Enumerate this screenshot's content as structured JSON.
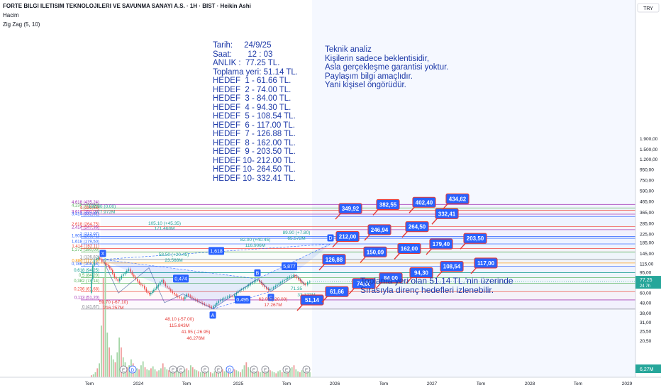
{
  "header": {
    "title": "FORTE BILGI ILETISIM TEKNOLOJILERI VE SAVUNMA SANAYI A.S. · 1H · BIST · Heikin Ashi",
    "volume_label": "Hacim",
    "indicator_label": "Zig Zag (5, 10)",
    "currency": "TRY"
  },
  "info_box": {
    "lines": [
      "Tarih:     24/9/25",
      "Saat:       12 : 03",
      "ANLIK :  77.25 TL.",
      "Toplama yeri: 51.14 TL.",
      "HEDEF  1 - 61.66 TL.",
      "HEDEF  2 - 74.00 TL.",
      "HEDEF  3 - 84.00 TL.",
      "HEDEF  4 - 94.30 TL.",
      "HEDEF  5 - 108.54 TL.",
      "HEDEF  6 - 117.00 TL.",
      "HEDEF  7 - 126.88 TL.",
      "HEDEF  8 - 162.00 TL.",
      "HEDEF  9 - 203.50 TL.",
      "HEDEF 10- 212.00 TL.",
      "HEDEF 10- 264.50 TL.",
      "HEDEF 10- 332.41 TL."
    ]
  },
  "disclaimer": {
    "lines": [
      "Teknik analiz",
      "Kişilerin sadece beklentisidir,",
      "Asla gerçekleşme garantisi yoktur.",
      "Paylaşım bilgi amaçlıdır.",
      "Yani kişisel öngörüdür."
    ]
  },
  "bottom_note": {
    "lines": [
      "Toplama yeri olan 51.14 TL.'nin üzerinde",
      "Sırasıyla direnç hedefleri izlenebilir."
    ]
  },
  "chart_data": {
    "type": "candlestick",
    "price_scale": "log",
    "ylim": [
      20,
      2300
    ],
    "y_ticks": [
      "1.900,00",
      "1.500,00",
      "1.200,00",
      "950,00",
      "750,00",
      "590,00",
      "465,00",
      "365,00",
      "285,00",
      "225,00",
      "185,00",
      "145,00",
      "115,00",
      "95,00",
      "60,00",
      "48,00",
      "38,00",
      "31,00",
      "25,50",
      "20,50"
    ],
    "x_ticks": [
      "Tem",
      "2024",
      "Tem",
      "2025",
      "Tem",
      "2026",
      "Tem",
      "2027",
      "Tem",
      "2028",
      "Tem",
      "2029"
    ],
    "current_price": {
      "label": "77,25",
      "sub": "24 7h",
      "value": 77.25,
      "color": "#26a69a"
    },
    "volume_badge": "6,27M",
    "fib_levels": [
      {
        "label": "4,618 (435,24)",
        "value": 435.24,
        "color": "#9c27b0"
      },
      {
        "label": "4,236 (402,68)",
        "value": 402.68,
        "color": "#4caf50"
      },
      {
        "label": "4 (382,56)",
        "value": 382.56,
        "color": "#f44336"
      },
      {
        "label": "3,618 (350,00)",
        "value": 350.0,
        "color": "#9c27b0"
      },
      {
        "label": "3,414 (332,61)",
        "value": 332.61,
        "color": "#2962ff"
      },
      {
        "label": "2,618 (264,75)",
        "value": 264.75,
        "color": "#f44336"
      },
      {
        "label": "2,414 (247,36)",
        "value": 247.36,
        "color": "#9c27b0"
      },
      {
        "label": "2 (212,07)",
        "value": 212.07,
        "color": "#2962ff"
      },
      {
        "label": "1,902 (203,71)",
        "value": 203.71,
        "color": "#2962ff"
      },
      {
        "label": "1,618 (179,50)",
        "value": 179.5,
        "color": "#2962ff"
      },
      {
        "label": "1,414 (162,11)",
        "value": 162.11,
        "color": "#f44336"
      },
      {
        "label": "1,272 (150,00)",
        "value": 150.0,
        "color": "#4caf50"
      },
      {
        "label": "1 (126,82)",
        "value": 126.82,
        "color": "#787b86"
      },
      {
        "label": "0,886 (117,10)",
        "value": 117.1,
        "color": "#ff9800"
      },
      {
        "label": "0,786 (108,58)",
        "value": 108.58,
        "color": "#2962ff"
      },
      {
        "label": "0,618 (94,25)",
        "value": 94.25,
        "color": "#009688"
      },
      {
        "label": "0,5 (84,20)",
        "value": 84.2,
        "color": "#4caf50"
      },
      {
        "label": "0,382 (74,14)",
        "value": 74.14,
        "color": "#4caf50"
      },
      {
        "label": "0,236 (61,68)",
        "value": 61.68,
        "color": "#f44336"
      },
      {
        "label": "0,113 (51,20)",
        "value": 51.2,
        "color": "#9c27b0"
      },
      {
        "label": "0 (41,67)",
        "value": 41.67,
        "color": "#787b86"
      }
    ],
    "targets": [
      {
        "label": "51,14",
        "value": 51.14
      },
      {
        "label": "61,66",
        "value": 61.66
      },
      {
        "label": "74,00",
        "value": 74.0
      },
      {
        "label": "84,00",
        "value": 84.0
      },
      {
        "label": "94,30",
        "value": 94.3
      },
      {
        "label": "108,54",
        "value": 108.54
      },
      {
        "label": "117,00",
        "value": 117.0
      },
      {
        "label": "126,88",
        "value": 126.88
      },
      {
        "label": "150,09",
        "value": 150.09
      },
      {
        "label": "162,00",
        "value": 162.0
      },
      {
        "label": "179,40",
        "value": 179.4
      },
      {
        "label": "203,50",
        "value": 203.5
      },
      {
        "label": "212,00",
        "value": 212.0
      },
      {
        "label": "246,94",
        "value": 246.94
      },
      {
        "label": "264,50",
        "value": 264.5
      },
      {
        "label": "332,41",
        "value": 332.41
      },
      {
        "label": "349,92",
        "value": 349.92
      },
      {
        "label": "382,55",
        "value": 382.55
      },
      {
        "label": "402,40",
        "value": 402.4
      },
      {
        "label": "434,62",
        "value": 434.62
      }
    ],
    "harmonic_points": [
      {
        "label": "X",
        "value": 126.82
      },
      {
        "label": "A",
        "value": 41.67
      },
      {
        "label": "B",
        "value": 82.0
      },
      {
        "label": "C",
        "value": 62.0
      },
      {
        "label": "D",
        "value": 179.5
      }
    ],
    "harmonic_ratios": [
      "1,618",
      "0,474",
      "0,495",
      "5,877"
    ],
    "zigzag_labels": [
      "105.10 (+45.35)",
      "171.468M",
      "59.70 (-67.10)",
      "216.257M",
      "58.50 (+20.45)",
      "23.568M",
      "48.10 (-57.00)",
      "115.843M",
      "41.95 (-26.95)",
      "46.276M",
      "82.00 (+40.45)",
      "116.906M",
      "62.00 (-20.00)",
      "17.267M",
      "71.35",
      "33.177M",
      "89.90 (+7.80)",
      "65.572M",
      "132.80 (0.00)",
      "177.972M"
    ],
    "event_markers": [
      "E",
      "D",
      "E",
      "E",
      "E",
      "E",
      "D",
      "E",
      "E",
      "E",
      "E"
    ]
  }
}
